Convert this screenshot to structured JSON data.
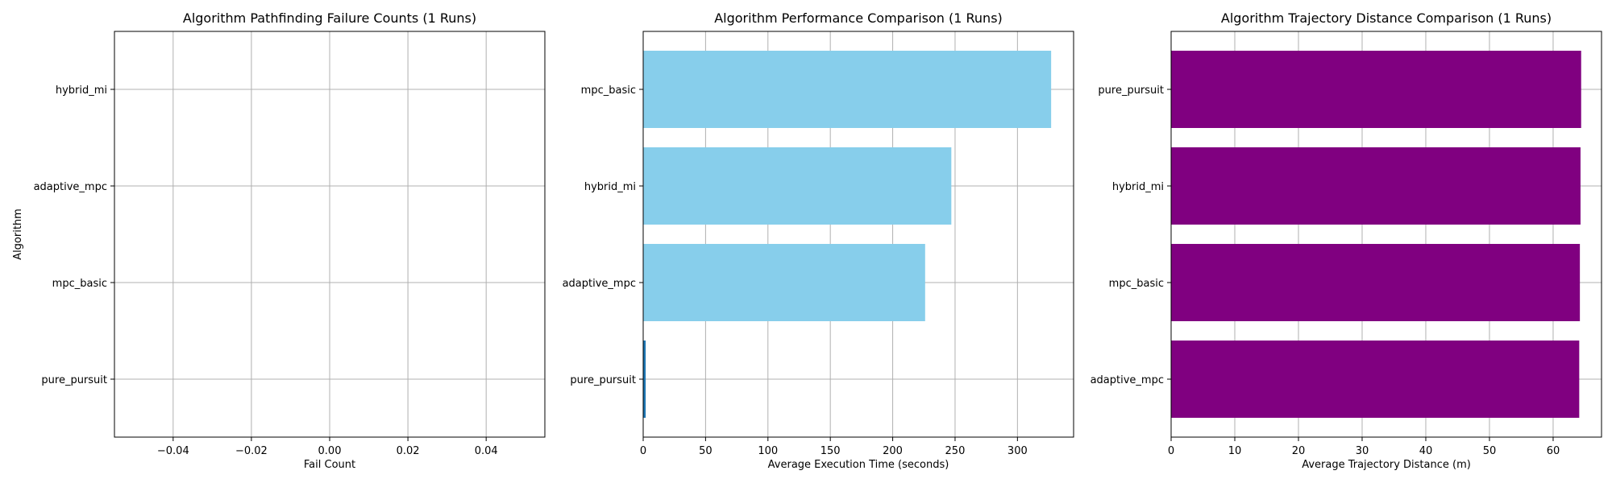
{
  "chart_data": [
    {
      "type": "bar",
      "orientation": "horizontal",
      "title": "Algorithm Pathfinding Failure Counts (1 Runs)",
      "xlabel": "Fail Count",
      "ylabel": "Algorithm",
      "categories": [
        "pure_pursuit",
        "mpc_basic",
        "adaptive_mpc",
        "hybrid_mi"
      ],
      "values": [
        0,
        0,
        0,
        0
      ],
      "xlim": [
        -0.055,
        0.055
      ],
      "xticks": [
        -0.04,
        -0.02,
        0.0,
        0.02,
        0.04
      ],
      "xtick_labels": [
        "−0.04",
        "−0.02",
        "0.00",
        "0.02",
        "0.04"
      ],
      "grid": true,
      "color": "#87CEEB"
    },
    {
      "type": "bar",
      "orientation": "horizontal",
      "title": "Algorithm Performance Comparison (1 Runs)",
      "xlabel": "Average Execution Time (seconds)",
      "ylabel": "",
      "categories": [
        "pure_pursuit",
        "adaptive_mpc",
        "hybrid_mi",
        "mpc_basic"
      ],
      "values": [
        2,
        226,
        247,
        327
      ],
      "bar_colors": [
        "#1f77b4",
        "#87CEEB",
        "#87CEEB",
        "#87CEEB"
      ],
      "xlim": [
        0,
        345
      ],
      "xticks": [
        0,
        50,
        100,
        150,
        200,
        250,
        300
      ],
      "xtick_labels": [
        "0",
        "50",
        "100",
        "150",
        "200",
        "250",
        "300"
      ],
      "grid": true
    },
    {
      "type": "bar",
      "orientation": "horizontal",
      "title": "Algorithm Trajectory Distance Comparison (1 Runs)",
      "xlabel": "Average Trajectory Distance (m)",
      "ylabel": "",
      "categories": [
        "adaptive_mpc",
        "mpc_basic",
        "hybrid_mi",
        "pure_pursuit"
      ],
      "values": [
        64.1,
        64.2,
        64.3,
        64.4
      ],
      "color": "#800080",
      "xlim": [
        0,
        67.6
      ],
      "xticks": [
        0,
        10,
        20,
        30,
        40,
        50,
        60
      ],
      "xtick_labels": [
        "0",
        "10",
        "20",
        "30",
        "40",
        "50",
        "60"
      ],
      "grid": true
    }
  ]
}
